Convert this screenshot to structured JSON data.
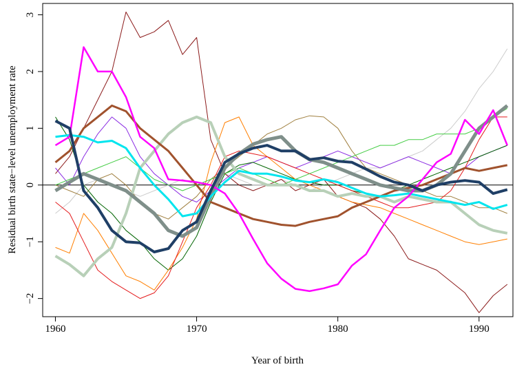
{
  "chart_data": {
    "type": "line",
    "xlabel": "Year of birth",
    "ylabel": "Residual birth state−level unemployment rate",
    "x": [
      1960,
      1961,
      1962,
      1963,
      1964,
      1965,
      1966,
      1967,
      1968,
      1969,
      1970,
      1971,
      1972,
      1973,
      1974,
      1975,
      1976,
      1977,
      1978,
      1979,
      1980,
      1981,
      1982,
      1983,
      1984,
      1985,
      1986,
      1987,
      1988,
      1989,
      1990,
      1991,
      1992
    ],
    "xlim": [
      1959.1,
      1992.4
    ],
    "ylim": [
      -2.32,
      3.2
    ],
    "xticks": [
      1960,
      1970,
      1980,
      1990
    ],
    "yticks": [
      {
        "value": -2,
        "label": "−2"
      },
      {
        "value": -1,
        "label": "−1"
      },
      0,
      1,
      2,
      3
    ],
    "hline": 0,
    "series": [
      {
        "color": "#cccccc",
        "width": 1,
        "values": [
          -0.5,
          -0.3,
          0.0,
          0.1,
          0.0,
          -0.1,
          -0.2,
          -0.1,
          0.0,
          0.1,
          0.0,
          0.1,
          0.2,
          0.1,
          0.0,
          0.0,
          0.1,
          0.0,
          -0.1,
          0.0,
          0.1,
          0.2,
          0.3,
          0.3,
          0.4,
          0.5,
          0.6,
          0.8,
          1.0,
          1.3,
          1.7,
          2.0,
          2.4
        ]
      },
      {
        "color": "#8b1a1a",
        "width": 1,
        "values": [
          0.2,
          0.5,
          1.0,
          1.5,
          2.0,
          3.05,
          2.6,
          2.7,
          2.9,
          2.3,
          2.6,
          0.8,
          0.2,
          0.0,
          -0.1,
          0.0,
          0.1,
          -0.1,
          0.0,
          0.1,
          -0.2,
          -0.3,
          -0.4,
          -0.6,
          -0.9,
          -1.3,
          -1.4,
          -1.5,
          -1.7,
          -1.9,
          -2.25,
          -1.95,
          -1.75
        ]
      },
      {
        "color": "#a08040",
        "width": 1,
        "values": [
          0.0,
          -0.1,
          -0.2,
          0.1,
          0.2,
          0.0,
          -0.3,
          -0.5,
          -0.6,
          -0.4,
          -0.2,
          0.1,
          0.3,
          0.5,
          0.7,
          0.9,
          1.0,
          1.15,
          1.22,
          1.2,
          1.0,
          0.6,
          0.3,
          0.2,
          0.1,
          0.0,
          -0.1,
          -0.2,
          -0.2,
          -0.3,
          -0.4,
          -0.4,
          -0.5
        ]
      },
      {
        "color": "#8a2be2",
        "width": 1,
        "values": [
          0.3,
          0.0,
          0.5,
          0.9,
          1.2,
          1.0,
          0.5,
          0.2,
          0.0,
          -0.2,
          -0.3,
          -0.1,
          0.1,
          0.3,
          0.4,
          0.5,
          0.4,
          0.3,
          0.4,
          0.5,
          0.6,
          0.5,
          0.4,
          0.3,
          0.4,
          0.5,
          0.4,
          0.3,
          0.2,
          0.3,
          0.5,
          0.6,
          0.7
        ]
      },
      {
        "color": "#006400",
        "width": 1,
        "values": [
          1.2,
          0.8,
          0.0,
          -0.3,
          -0.5,
          -0.8,
          -1.0,
          -1.3,
          -1.5,
          -1.3,
          -0.9,
          -0.3,
          0.2,
          0.35,
          0.4,
          0.3,
          0.2,
          0.1,
          0.05,
          0.0,
          0.0,
          -0.1,
          -0.15,
          -0.2,
          -0.1,
          0.0,
          0.1,
          0.2,
          0.3,
          0.4,
          0.5,
          0.6,
          0.7
        ]
      },
      {
        "color": "#ff7f00",
        "width": 1,
        "values": [
          -1.1,
          -1.2,
          -0.5,
          -0.8,
          -1.2,
          -1.6,
          -1.7,
          -1.85,
          -1.5,
          -1.1,
          -0.6,
          0.4,
          1.1,
          1.2,
          0.7,
          0.5,
          0.3,
          0.1,
          0.0,
          -0.1,
          -0.2,
          -0.3,
          -0.35,
          -0.4,
          -0.5,
          -0.6,
          -0.7,
          -0.8,
          -0.9,
          -1.0,
          -1.05,
          -1.0,
          -0.95
        ]
      },
      {
        "color": "#e41a1c",
        "width": 1,
        "values": [
          -0.3,
          -0.5,
          -1.0,
          -1.5,
          -1.7,
          -1.85,
          -2.0,
          -1.9,
          -1.6,
          -1.0,
          -0.4,
          0.0,
          0.5,
          0.6,
          0.55,
          0.5,
          0.4,
          0.3,
          0.2,
          0.1,
          0.0,
          -0.1,
          -0.2,
          -0.3,
          -0.4,
          -0.4,
          -0.35,
          -0.3,
          -0.1,
          0.3,
          0.8,
          1.2,
          1.2
        ]
      },
      {
        "color": "#44cc44",
        "width": 1,
        "values": [
          0.0,
          0.1,
          0.2,
          0.3,
          0.4,
          0.5,
          0.3,
          0.1,
          0.0,
          -0.1,
          0.0,
          0.1,
          0.2,
          0.3,
          0.2,
          0.1,
          0.0,
          0.1,
          0.2,
          0.3,
          0.4,
          0.5,
          0.6,
          0.7,
          0.7,
          0.8,
          0.8,
          0.9,
          0.9,
          0.9,
          1.0,
          1.2,
          1.35
        ]
      },
      {
        "color": "#b8d0b8",
        "width": 4,
        "values": [
          -1.25,
          -1.4,
          -1.6,
          -1.3,
          -1.1,
          -0.5,
          0.3,
          0.6,
          0.9,
          1.1,
          1.2,
          1.1,
          0.5,
          0.2,
          0.1,
          0.0,
          0.0,
          0.0,
          -0.1,
          -0.1,
          -0.2,
          -0.15,
          -0.2,
          -0.2,
          -0.3,
          -0.2,
          -0.25,
          -0.3,
          -0.3,
          -0.5,
          -0.7,
          -0.8,
          -0.85
        ]
      },
      {
        "color": "#a0522d",
        "width": 3,
        "values": [
          0.4,
          0.6,
          1.0,
          1.2,
          1.4,
          1.3,
          1.0,
          0.8,
          0.6,
          0.3,
          0.0,
          -0.3,
          -0.4,
          -0.5,
          -0.6,
          -0.65,
          -0.7,
          -0.72,
          -0.65,
          -0.6,
          -0.55,
          -0.4,
          -0.3,
          -0.2,
          -0.1,
          -0.05,
          0.0,
          0.1,
          0.2,
          0.3,
          0.25,
          0.3,
          0.35
        ]
      },
      {
        "color": "#7f8f8a",
        "width": 5,
        "values": [
          -0.1,
          0.05,
          0.2,
          0.1,
          0.0,
          -0.1,
          -0.3,
          -0.5,
          -0.8,
          -0.9,
          -0.75,
          -0.2,
          0.3,
          0.55,
          0.72,
          0.8,
          0.85,
          0.6,
          0.45,
          0.4,
          0.3,
          0.2,
          0.1,
          0.0,
          -0.05,
          -0.1,
          -0.1,
          0.0,
          0.2,
          0.6,
          1.0,
          1.2,
          1.4
        ]
      },
      {
        "color": "#00e5ee",
        "width": 3,
        "values": [
          0.85,
          0.88,
          0.85,
          0.75,
          0.78,
          0.65,
          0.3,
          0.0,
          -0.25,
          -0.55,
          -0.5,
          -0.2,
          0.05,
          0.25,
          0.2,
          0.2,
          0.15,
          0.08,
          0.05,
          0.1,
          0.05,
          -0.05,
          -0.15,
          -0.2,
          -0.18,
          -0.15,
          -0.2,
          -0.25,
          -0.3,
          -0.35,
          -0.3,
          -0.42,
          -0.35
        ]
      },
      {
        "color": "#ff00ff",
        "width": 2.5,
        "values": [
          0.7,
          0.85,
          2.43,
          2.0,
          2.0,
          1.55,
          0.85,
          0.65,
          0.1,
          0.08,
          0.05,
          0.0,
          -0.15,
          -0.5,
          -0.95,
          -1.38,
          -1.65,
          -1.83,
          -1.87,
          -1.82,
          -1.75,
          -1.42,
          -1.22,
          -0.8,
          -0.4,
          -0.2,
          0.1,
          0.4,
          0.55,
          1.15,
          0.9,
          1.32,
          0.7
        ]
      },
      {
        "color": "#1f3f66",
        "width": 4,
        "values": [
          1.13,
          1.0,
          -0.1,
          -0.4,
          -0.8,
          -1.0,
          -1.02,
          -1.18,
          -1.12,
          -0.8,
          -0.65,
          -0.1,
          0.4,
          0.55,
          0.65,
          0.7,
          0.6,
          0.6,
          0.45,
          0.48,
          0.42,
          0.4,
          0.28,
          0.15,
          0.05,
          0.0,
          -0.1,
          0.0,
          0.05,
          0.08,
          0.05,
          -0.15,
          -0.08
        ]
      }
    ]
  }
}
